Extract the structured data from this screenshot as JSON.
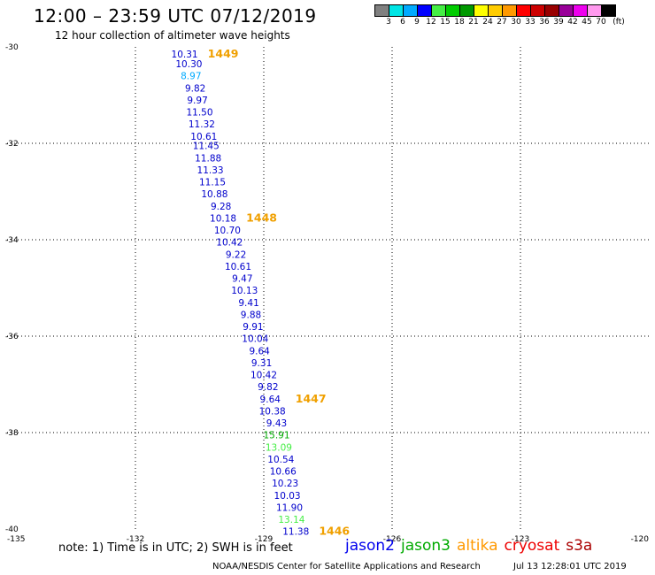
{
  "header": {
    "title": "12:00 – 23:59 UTC 07/12/2019",
    "subtitle": "12 hour collection of altimeter wave heights"
  },
  "legend": {
    "colors": [
      "#808080",
      "#00e5e5",
      "#00aaff",
      "#0000ff",
      "#44ee44",
      "#00cc00",
      "#009900",
      "#ffff00",
      "#ffcc00",
      "#ff9900",
      "#ff0000",
      "#cc0000",
      "#990000",
      "#990099",
      "#ee00ee",
      "#ff99ee",
      "#000000"
    ],
    "labels": [
      "3",
      "6",
      "9",
      "12",
      "15",
      "18",
      "21",
      "24",
      "27",
      "30",
      "33",
      "36",
      "39",
      "42",
      "45",
      "70",
      "(ft)"
    ]
  },
  "map": {
    "lat_ticks": [
      "-30",
      "-32",
      "-34",
      "-36",
      "-38",
      "-40"
    ],
    "lon_ticks": [
      "-135",
      "-132",
      "-129",
      "-126",
      "-123",
      "-120"
    ],
    "observations": [
      {
        "v": "10.31",
        "c": "#0000cc",
        "lon": -130.85,
        "lat": -30.15
      },
      {
        "v": "10.30",
        "c": "#0000cc",
        "lon": -130.75,
        "lat": -30.35
      },
      {
        "v": "8.97",
        "c": "#00aaff",
        "lon": -130.7,
        "lat": -30.6
      },
      {
        "v": "9.82",
        "c": "#0000cc",
        "lon": -130.6,
        "lat": -30.85
      },
      {
        "v": "9.97",
        "c": "#0000cc",
        "lon": -130.55,
        "lat": -31.1
      },
      {
        "v": "11.50",
        "c": "#0000cc",
        "lon": -130.5,
        "lat": -31.35
      },
      {
        "v": "11.32",
        "c": "#0000cc",
        "lon": -130.45,
        "lat": -31.6
      },
      {
        "v": "10.61",
        "c": "#0000cc",
        "lon": -130.4,
        "lat": -31.85
      },
      {
        "v": "11.45",
        "c": "#0000cc",
        "lon": -130.35,
        "lat": -32.05
      },
      {
        "v": "11.88",
        "c": "#0000cc",
        "lon": -130.3,
        "lat": -32.3
      },
      {
        "v": "11.33",
        "c": "#0000cc",
        "lon": -130.25,
        "lat": -32.55
      },
      {
        "v": "11.15",
        "c": "#0000cc",
        "lon": -130.2,
        "lat": -32.8
      },
      {
        "v": "10.88",
        "c": "#0000cc",
        "lon": -130.15,
        "lat": -33.05
      },
      {
        "v": "9.28",
        "c": "#0000cc",
        "lon": -130.0,
        "lat": -33.3
      },
      {
        "v": "10.18",
        "c": "#0000cc",
        "lon": -129.95,
        "lat": -33.55
      },
      {
        "v": "10.70",
        "c": "#0000cc",
        "lon": -129.85,
        "lat": -33.8
      },
      {
        "v": "10.42",
        "c": "#0000cc",
        "lon": -129.8,
        "lat": -34.05
      },
      {
        "v": "9.22",
        "c": "#0000cc",
        "lon": -129.65,
        "lat": -34.3
      },
      {
        "v": "10.61",
        "c": "#0000cc",
        "lon": -129.6,
        "lat": -34.55
      },
      {
        "v": "9.47",
        "c": "#0000cc",
        "lon": -129.5,
        "lat": -34.8
      },
      {
        "v": "10.13",
        "c": "#0000cc",
        "lon": -129.45,
        "lat": -35.05
      },
      {
        "v": "9.41",
        "c": "#0000cc",
        "lon": -129.35,
        "lat": -35.3
      },
      {
        "v": "9.88",
        "c": "#0000cc",
        "lon": -129.3,
        "lat": -35.55
      },
      {
        "v": "9.91",
        "c": "#0000cc",
        "lon": -129.25,
        "lat": -35.8
      },
      {
        "v": "10.04",
        "c": "#0000cc",
        "lon": -129.2,
        "lat": -36.05
      },
      {
        "v": "9.64",
        "c": "#0000cc",
        "lon": -129.1,
        "lat": -36.3
      },
      {
        "v": "9.31",
        "c": "#0000cc",
        "lon": -129.05,
        "lat": -36.55
      },
      {
        "v": "10.42",
        "c": "#0000cc",
        "lon": -129.0,
        "lat": -36.8
      },
      {
        "v": "9.82",
        "c": "#0000cc",
        "lon": -128.9,
        "lat": -37.05
      },
      {
        "v": "9.64",
        "c": "#0000cc",
        "lon": -128.85,
        "lat": -37.3
      },
      {
        "v": "10.38",
        "c": "#0000cc",
        "lon": -128.8,
        "lat": -37.55
      },
      {
        "v": "9.43",
        "c": "#0000cc",
        "lon": -128.7,
        "lat": -37.8
      },
      {
        "v": "15.91",
        "c": "#00aa00",
        "lon": -128.7,
        "lat": -38.05
      },
      {
        "v": "13.09",
        "c": "#44ee44",
        "lon": -128.65,
        "lat": -38.3
      },
      {
        "v": "10.54",
        "c": "#0000cc",
        "lon": -128.6,
        "lat": -38.55
      },
      {
        "v": "10.66",
        "c": "#0000cc",
        "lon": -128.55,
        "lat": -38.8
      },
      {
        "v": "10.23",
        "c": "#0000cc",
        "lon": -128.5,
        "lat": -39.05
      },
      {
        "v": "10.03",
        "c": "#0000cc",
        "lon": -128.45,
        "lat": -39.3
      },
      {
        "v": "11.90",
        "c": "#0000cc",
        "lon": -128.4,
        "lat": -39.55
      },
      {
        "v": "13.14",
        "c": "#44ee44",
        "lon": -128.35,
        "lat": -39.8
      },
      {
        "v": "11.38",
        "c": "#0000cc",
        "lon": -128.25,
        "lat": -40.05
      }
    ],
    "pass_times": [
      {
        "t": "1449",
        "lon": -129.95,
        "lat": -30.15
      },
      {
        "t": "1448",
        "lon": -129.05,
        "lat": -33.55
      },
      {
        "t": "1447",
        "lon": -127.9,
        "lat": -37.3
      },
      {
        "t": "1446",
        "lon": -127.35,
        "lat": -40.05
      }
    ]
  },
  "footer": {
    "note": "note:  1) Time is in UTC;  2) SWH is in feet",
    "satellites": [
      {
        "name": "jason2",
        "color": "#0000ee"
      },
      {
        "name": "jason3",
        "color": "#00aa00"
      },
      {
        "name": "altika",
        "color": "#ff9900"
      },
      {
        "name": "cryosat",
        "color": "#ee0000"
      },
      {
        "name": "s3a",
        "color": "#aa0000"
      }
    ],
    "credit": "NOAA/NESDIS Center for Satellite Applications and Research",
    "timestamp": "Jul 13 12:28:01 UTC 2019"
  }
}
